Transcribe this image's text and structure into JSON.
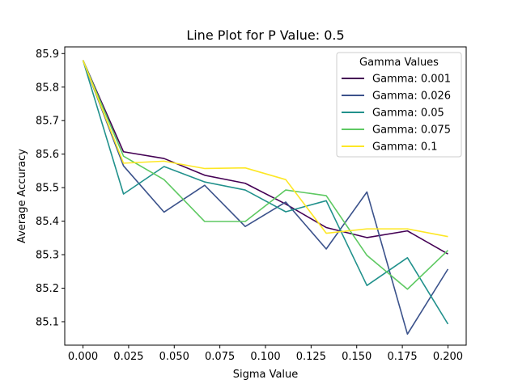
{
  "chart_data": {
    "type": "line",
    "title": "Line Plot for P Value: 0.5",
    "xlabel": "Sigma Value",
    "ylabel": "Average Accuracy",
    "xlim": [
      -0.01,
      0.21
    ],
    "ylim": [
      85.03,
      85.92
    ],
    "xticks": [
      0.0,
      0.025,
      0.05,
      0.075,
      0.1,
      0.125,
      0.15,
      0.175,
      0.2
    ],
    "xtick_labels": [
      "0.000",
      "0.025",
      "0.050",
      "0.075",
      "0.100",
      "0.125",
      "0.150",
      "0.175",
      "0.200"
    ],
    "yticks": [
      85.1,
      85.2,
      85.3,
      85.4,
      85.5,
      85.6,
      85.7,
      85.8,
      85.9
    ],
    "ytick_labels": [
      "85.1",
      "85.2",
      "85.3",
      "85.4",
      "85.5",
      "85.6",
      "85.7",
      "85.8",
      "85.9"
    ],
    "grid": false,
    "legend": {
      "title": "Gamma Values",
      "placement": "top-right"
    },
    "x": [
      0.0,
      0.0222,
      0.0444,
      0.0667,
      0.0889,
      0.1111,
      0.1333,
      0.1556,
      0.1778,
      0.2
    ],
    "series": [
      {
        "name": "Gamma: 0.001",
        "color": "#440154",
        "values": [
          85.88,
          85.607,
          85.587,
          85.537,
          85.513,
          85.451,
          85.381,
          85.351,
          85.371,
          85.302
        ]
      },
      {
        "name": "Gamma: 0.026",
        "color": "#3b528b",
        "values": [
          85.88,
          85.565,
          85.427,
          85.507,
          85.384,
          85.457,
          85.317,
          85.487,
          85.063,
          85.257
        ]
      },
      {
        "name": "Gamma: 0.05",
        "color": "#21918c",
        "values": [
          85.88,
          85.481,
          85.563,
          85.517,
          85.493,
          85.428,
          85.461,
          85.208,
          85.291,
          85.093
        ]
      },
      {
        "name": "Gamma: 0.075",
        "color": "#5ec962",
        "values": [
          85.88,
          85.594,
          85.524,
          85.399,
          85.399,
          85.493,
          85.476,
          85.298,
          85.197,
          85.313
        ]
      },
      {
        "name": "Gamma: 0.1",
        "color": "#fde725",
        "values": [
          85.88,
          85.573,
          85.579,
          85.557,
          85.559,
          85.524,
          85.364,
          85.377,
          85.377,
          85.354
        ]
      }
    ]
  }
}
